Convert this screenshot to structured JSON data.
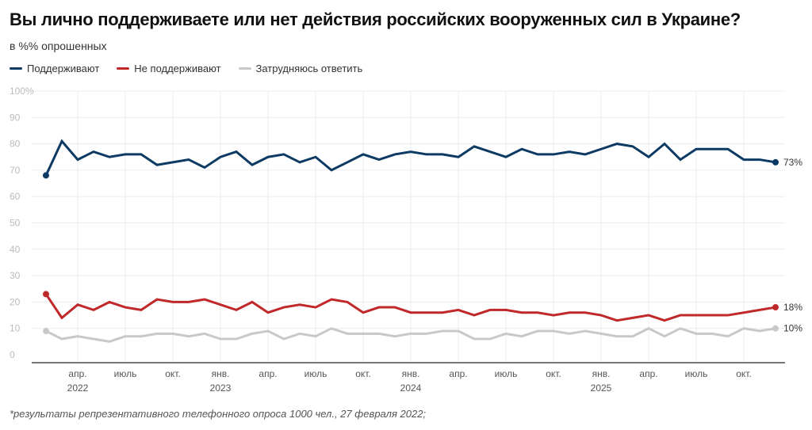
{
  "chart_data": {
    "type": "line",
    "title": "Вы лично поддерживаете или нет действия российских вооруженных сил в Украине?",
    "subtitle": "в %% опрошенных",
    "note": "*результаты репрезентативного телефонного опроса 1000 чел., 27 февраля 2022;",
    "ylim": [
      0,
      100
    ],
    "y_ticks": [
      "0",
      "10",
      "20",
      "30",
      "40",
      "50",
      "60",
      "70",
      "80",
      "90",
      "100%"
    ],
    "x_ticks": [
      {
        "month": "2022-04",
        "label": "апр.",
        "year": "2022"
      },
      {
        "month": "2022-07",
        "label": "июль"
      },
      {
        "month": "2022-10",
        "label": "окт."
      },
      {
        "month": "2023-01",
        "label": "янв.",
        "year": "2023"
      },
      {
        "month": "2023-04",
        "label": "апр."
      },
      {
        "month": "2023-07",
        "label": "июль"
      },
      {
        "month": "2023-10",
        "label": "окт."
      },
      {
        "month": "2024-01",
        "label": "янв.",
        "year": "2024"
      },
      {
        "month": "2024-04",
        "label": "апр."
      },
      {
        "month": "2024-07",
        "label": "июль"
      },
      {
        "month": "2024-10",
        "label": "окт."
      },
      {
        "month": "2025-01",
        "label": "янв.",
        "year": "2025"
      },
      {
        "month": "2025-04",
        "label": "апр."
      },
      {
        "month": "2025-07",
        "label": "июль"
      },
      {
        "month": "2025-10",
        "label": "окт."
      }
    ],
    "x_start": "2022-02",
    "grid": true,
    "legend_position": "top-left",
    "series": [
      {
        "name": "Поддерживают",
        "color": "#0d3a63",
        "end_label": "73%",
        "values": [
          68,
          81,
          74,
          77,
          75,
          76,
          76,
          72,
          73,
          74,
          71,
          75,
          77,
          72,
          75,
          76,
          73,
          75,
          70,
          73,
          76,
          74,
          76,
          77,
          76,
          76,
          75,
          79,
          77,
          75,
          78,
          76,
          76,
          77,
          76,
          78,
          80,
          79,
          75,
          80,
          74,
          78,
          78,
          78,
          74,
          74,
          73
        ]
      },
      {
        "name": "Не поддерживают",
        "color": "#c0282a",
        "end_label": "18%",
        "values": [
          23,
          14,
          19,
          17,
          20,
          18,
          17,
          21,
          20,
          20,
          21,
          19,
          17,
          20,
          16,
          18,
          19,
          18,
          21,
          20,
          16,
          18,
          18,
          16,
          16,
          16,
          17,
          15,
          17,
          17,
          16,
          16,
          15,
          16,
          16,
          15,
          13,
          14,
          15,
          13,
          15,
          15,
          15,
          15,
          16,
          17,
          18
        ]
      },
      {
        "name": "Затрудняюсь ответить",
        "color": "#c8c8c8",
        "end_label": "10%",
        "values": [
          9,
          6,
          7,
          6,
          5,
          7,
          7,
          8,
          8,
          7,
          8,
          6,
          6,
          8,
          9,
          6,
          8,
          7,
          10,
          8,
          8,
          8,
          7,
          8,
          8,
          9,
          9,
          6,
          6,
          8,
          7,
          9,
          9,
          8,
          9,
          8,
          7,
          7,
          10,
          7,
          10,
          8,
          8,
          7,
          10,
          9,
          10
        ]
      }
    ]
  }
}
